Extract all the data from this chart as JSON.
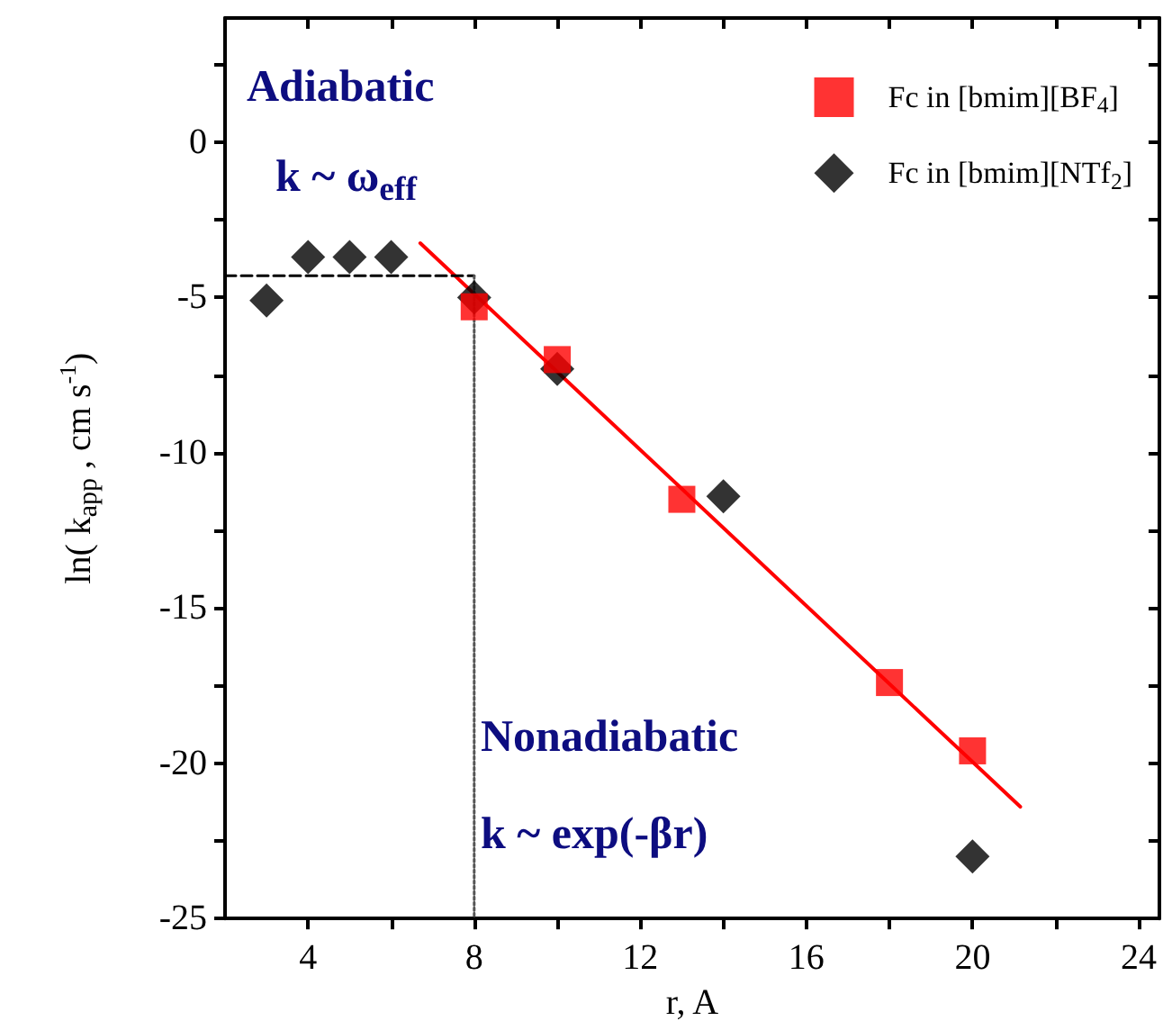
{
  "chart_data": {
    "type": "scatter",
    "xlabel": "r, A",
    "ylabel": "ln( k$_{app}$ , cm s$^{-1}$)",
    "annotations": [
      "Adiabatic",
      "k ~ ω$_{eff}$",
      "Nonadiabatic",
      "k ~ exp(-βr)"
    ],
    "xlim": [
      2,
      24.5
    ],
    "xticks": [
      4,
      {
        "value": 6,
        "label": null
      },
      8,
      {
        "value": 10,
        "label": null
      },
      12,
      {
        "value": 14,
        "label": null
      },
      16,
      {
        "value": 18,
        "label": null
      },
      20,
      {
        "value": 22,
        "label": null
      },
      24
    ],
    "ylim": [
      -25,
      4
    ],
    "yticks": [
      -25,
      {
        "value": -22.5,
        "label": null
      },
      -20,
      {
        "value": -17.5,
        "label": null
      },
      -15,
      {
        "value": -12.5,
        "label": null
      },
      -10,
      {
        "value": -7.5,
        "label": null
      },
      -5,
      {
        "value": -2.5,
        "label": null
      },
      0,
      {
        "value": 2.5,
        "label": null
      }
    ],
    "grid": false,
    "legend": "top right",
    "series": [
      {
        "type": "line",
        "color": "#ff0000",
        "marker": "none",
        "line_style": "solid",
        "x": [
          6.7,
          21.15
        ],
        "values": [
          -3.25,
          -21.4
        ]
      },
      {
        "type": "line",
        "color": "#000000",
        "marker": "none",
        "line_style": "dashed",
        "x": [
          2,
          8
        ],
        "values": [
          -4.3,
          -4.3
        ]
      },
      {
        "type": "line",
        "color": "#555555",
        "marker": "none",
        "line_style": "dotted",
        "x": [
          8,
          8
        ],
        "values": [
          -4.3,
          -25
        ]
      },
      {
        "name": "Fc in [bmim][BF$_{4}$]",
        "color": "#ff0000",
        "marker": "square",
        "x": [
          8,
          10,
          13,
          18,
          20
        ],
        "values": [
          -5.3,
          -7.0,
          -11.5,
          -17.4,
          -19.6
        ]
      },
      {
        "name": "Fc in [bmim][NTf$_{2}$]",
        "color": "#000000",
        "marker": "diamond",
        "x": [
          3,
          4,
          5,
          6,
          8,
          10,
          14,
          20
        ],
        "values": [
          -5.1,
          -3.7,
          -3.7,
          -3.7,
          -5.0,
          -7.3,
          -11.4,
          -23.0
        ]
      }
    ]
  }
}
